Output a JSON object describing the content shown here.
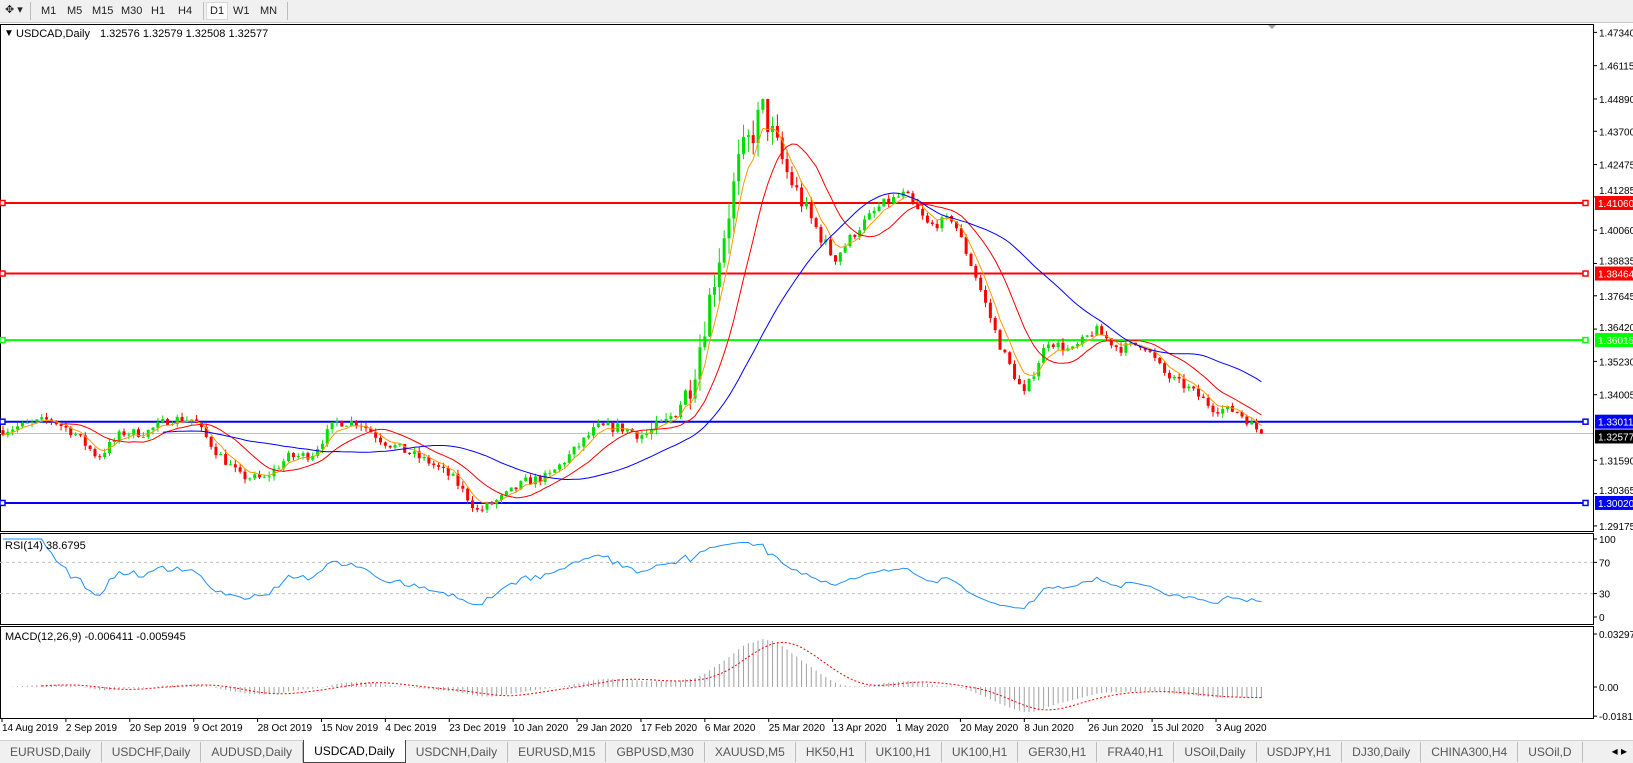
{
  "toolbar": {
    "cursor_menu_icon": "crosshair-dropdown-icon",
    "timeframes": [
      "M1",
      "M5",
      "M15",
      "M30",
      "H1",
      "H4",
      "D1",
      "W1",
      "MN"
    ],
    "active_timeframe": "D1"
  },
  "chart_header": {
    "symbol": "USDCAD,Daily",
    "ohlc": "1.32576 1.32579 1.32508 1.32577"
  },
  "rsi_header": "RSI(14) 38.6795",
  "macd_header": "MACD(12,26,9) -0.006411 -0.005945",
  "tabs": [
    "EURUSD,Daily",
    "USDCHF,Daily",
    "AUDUSD,Daily",
    "USDCAD,Daily",
    "USDCNH,Daily",
    "EURUSD,M15",
    "GBPUSD,M30",
    "XAUUSD,M5",
    "HK50,H1",
    "UK100,H1",
    "UK100,H1",
    "GER30,H1",
    "FRA40,H1",
    "USOil,Daily",
    "USDJPY,H1",
    "DJ30,Daily",
    "CHINA300,H4",
    "USOil,D"
  ],
  "active_tab": "USDCAD,Daily",
  "chart_data": {
    "type": "candlestick",
    "symbol": "USDCAD",
    "timeframe": "Daily",
    "x_tick_labels": [
      "14 Aug 2019",
      "2 Sep 2019",
      "20 Sep 2019",
      "9 Oct 2019",
      "28 Oct 2019",
      "15 Nov 2019",
      "4 Dec 2019",
      "23 Dec 2019",
      "10 Jan 2020",
      "29 Jan 2020",
      "17 Feb 2020",
      "6 Mar 2020",
      "25 Mar 2020",
      "13 Apr 2020",
      "1 May 2020",
      "20 May 2020",
      "8 Jun 2020",
      "26 Jun 2020",
      "15 Jul 2020",
      "3 Aug 2020"
    ],
    "y_tick_labels": [
      "1.47340",
      "1.46115",
      "1.44890",
      "1.43700",
      "1.42475",
      "1.41285",
      "1.40060",
      "1.38835",
      "1.37645",
      "1.36420",
      "1.35230",
      "1.34005",
      "1.31590",
      "1.30365",
      "1.29175"
    ],
    "ylim": [
      1.29175,
      1.4734
    ],
    "weekly_closes_approx": [
      1.327,
      1.329,
      1.331,
      1.326,
      1.317,
      1.326,
      1.326,
      1.331,
      1.331,
      1.319,
      1.31,
      1.309,
      1.317,
      1.318,
      1.33,
      1.33,
      1.323,
      1.319,
      1.315,
      1.309,
      1.297,
      1.302,
      1.308,
      1.31,
      1.319,
      1.328,
      1.328,
      1.325,
      1.33,
      1.344,
      1.385,
      1.425,
      1.445,
      1.422,
      1.405,
      1.39,
      1.401,
      1.41,
      1.414,
      1.402,
      1.405,
      1.383,
      1.358,
      1.34,
      1.36,
      1.356,
      1.364,
      1.357,
      1.359,
      1.347,
      1.342,
      1.335,
      1.334,
      1.3258
    ],
    "last_price": "1.32577",
    "bull_color": "#00e000",
    "bear_color": "#ff0000",
    "moving_average_colors": [
      "#ff9900",
      "#ff0000",
      "#0000ff"
    ],
    "horizontal_levels": [
      {
        "price": "1.41060",
        "color": "#ff0000"
      },
      {
        "price": "1.38464",
        "color": "#ff0000"
      },
      {
        "price": "1.36015",
        "color": "#00ff00"
      },
      {
        "price": "1.33011",
        "color": "#0000ff"
      },
      {
        "price": "1.30020",
        "color": "#0000ff"
      }
    ],
    "rsi": {
      "period": 14,
      "value": 38.6795,
      "levels": [
        30,
        70
      ],
      "y_tick_labels": [
        "100",
        "70",
        "30",
        "0"
      ],
      "color": "#1e90ff"
    },
    "macd": {
      "fast": 12,
      "slow": 26,
      "signal": 9,
      "main": -0.006411,
      "signal_value": -0.005945,
      "y_tick_labels": [
        "0.032972",
        "0.00",
        "-0.01815"
      ],
      "ylim": [
        -0.01815,
        0.032972
      ],
      "histogram_color": "#a0a0a0",
      "signal_color": "#ff0000"
    }
  }
}
